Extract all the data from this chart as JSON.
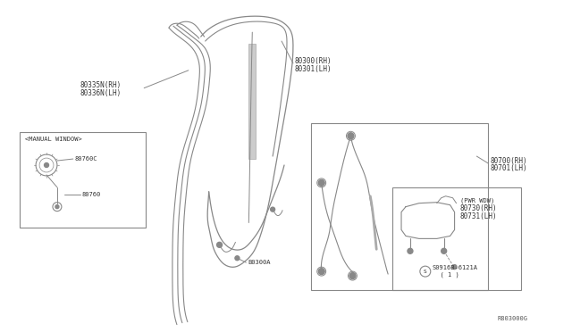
{
  "bg_color": "#ffffff",
  "fig_width": 6.4,
  "fig_height": 3.72,
  "title_ref": "R803000G",
  "labels": {
    "80335N_RH": "80335N(RH)",
    "80336N_LH": "80336N(LH)",
    "80300_RH": "80300(RH)",
    "80301_LH": "80301(LH)",
    "80300A": "B0300A",
    "80700_RH": "80700(RH)",
    "80701_LH": "80701(LH)",
    "pwr_wdw": "(PWR WDW)",
    "80730_RH": "80730(RH)",
    "80731_LH": "80731(LH)",
    "screw": "S0916B-6121A\n  ( 1 )",
    "manual_window": "<MANUAL WINDOW>",
    "80760C": "80760C",
    "80760": "80760"
  },
  "lc": "#888888",
  "tc": "#333333",
  "fs": 5.5,
  "fs_s": 5.0
}
